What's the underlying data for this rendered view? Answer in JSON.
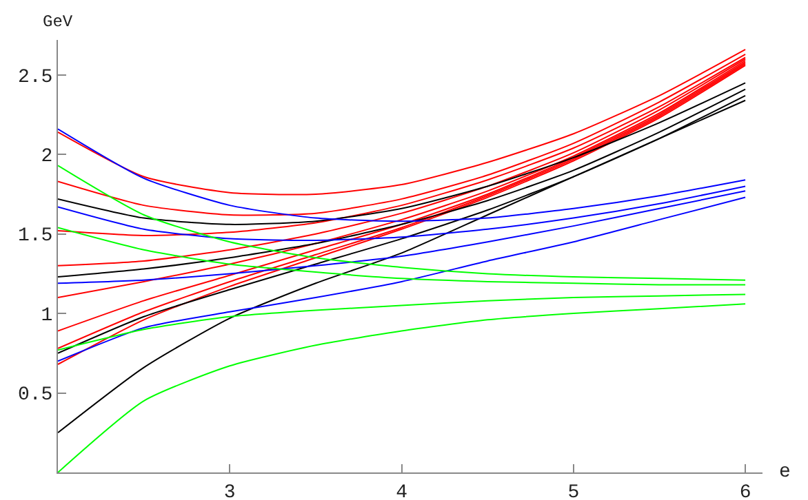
{
  "chart_data": {
    "type": "line",
    "xlabel": "e",
    "ylabel": "GeV",
    "x": [
      2,
      2.5,
      3,
      3.5,
      4,
      4.5,
      5,
      5.5,
      6
    ],
    "series": [
      {
        "color": "#ff0000",
        "values": [
          2.14,
          1.86,
          1.76,
          1.75,
          1.81,
          1.95,
          2.13,
          2.37,
          2.66
        ]
      },
      {
        "color": "#ff0000",
        "values": [
          1.83,
          1.68,
          1.62,
          1.63,
          1.72,
          1.87,
          2.07,
          2.33,
          2.63
        ]
      },
      {
        "color": "#ff0000",
        "values": [
          1.52,
          1.49,
          1.51,
          1.57,
          1.68,
          1.84,
          2.04,
          2.3,
          2.61
        ]
      },
      {
        "color": "#ff0000",
        "values": [
          1.3,
          1.33,
          1.4,
          1.5,
          1.63,
          1.8,
          2.01,
          2.28,
          2.6
        ]
      },
      {
        "color": "#ff0000",
        "values": [
          1.1,
          1.2,
          1.31,
          1.44,
          1.59,
          1.77,
          1.99,
          2.26,
          2.59
        ]
      },
      {
        "color": "#ff0000",
        "values": [
          0.89,
          1.08,
          1.24,
          1.4,
          1.56,
          1.75,
          1.98,
          2.25,
          2.58
        ]
      },
      {
        "color": "#ff0000",
        "values": [
          0.78,
          1.01,
          1.2,
          1.37,
          1.54,
          1.74,
          1.97,
          2.24,
          2.57
        ]
      },
      {
        "color": "#ff0000",
        "values": [
          0.68,
          0.96,
          1.17,
          1.35,
          1.53,
          1.73,
          1.96,
          2.23,
          2.56
        ]
      },
      {
        "color": "#000000",
        "values": [
          1.72,
          1.6,
          1.56,
          1.58,
          1.66,
          1.8,
          1.98,
          2.2,
          2.45
        ]
      },
      {
        "color": "#000000",
        "values": [
          1.23,
          1.28,
          1.35,
          1.44,
          1.56,
          1.71,
          1.9,
          2.14,
          2.41
        ]
      },
      {
        "color": "#000000",
        "values": [
          0.75,
          0.98,
          1.15,
          1.31,
          1.47,
          1.65,
          1.86,
          2.1,
          2.37
        ]
      },
      {
        "color": "#000000",
        "values": [
          0.25,
          0.66,
          0.97,
          1.19,
          1.38,
          1.62,
          1.86,
          2.1,
          2.34
        ]
      },
      {
        "color": "#0000ff",
        "values": [
          2.16,
          1.85,
          1.68,
          1.6,
          1.58,
          1.6,
          1.66,
          1.74,
          1.84
        ]
      },
      {
        "color": "#0000ff",
        "values": [
          1.67,
          1.53,
          1.47,
          1.46,
          1.48,
          1.53,
          1.6,
          1.69,
          1.8
        ]
      },
      {
        "color": "#0000ff",
        "values": [
          1.19,
          1.21,
          1.25,
          1.3,
          1.36,
          1.45,
          1.55,
          1.66,
          1.77
        ]
      },
      {
        "color": "#0000ff",
        "values": [
          0.7,
          0.91,
          1.01,
          1.1,
          1.2,
          1.33,
          1.45,
          1.59,
          1.73
        ]
      },
      {
        "color": "#00ff00",
        "values": [
          1.93,
          1.62,
          1.45,
          1.35,
          1.29,
          1.25,
          1.23,
          1.22,
          1.21
        ]
      },
      {
        "color": "#00ff00",
        "values": [
          1.54,
          1.4,
          1.31,
          1.26,
          1.22,
          1.2,
          1.19,
          1.18,
          1.18
        ]
      },
      {
        "color": "#00ff00",
        "values": [
          0.77,
          0.9,
          0.98,
          1.02,
          1.05,
          1.08,
          1.1,
          1.11,
          1.12
        ]
      },
      {
        "color": "#00ff00",
        "values": [
          0,
          0.45,
          0.67,
          0.8,
          0.89,
          0.96,
          1,
          1.03,
          1.06
        ]
      }
    ],
    "xlim": [
      2,
      6.1
    ],
    "ylim": [
      0,
      2.72
    ],
    "xticks": [
      3,
      4,
      5,
      6
    ],
    "yticks": [
      0.5,
      1,
      1.5,
      2,
      2.5
    ],
    "marker": "none",
    "line_style": "solid"
  }
}
